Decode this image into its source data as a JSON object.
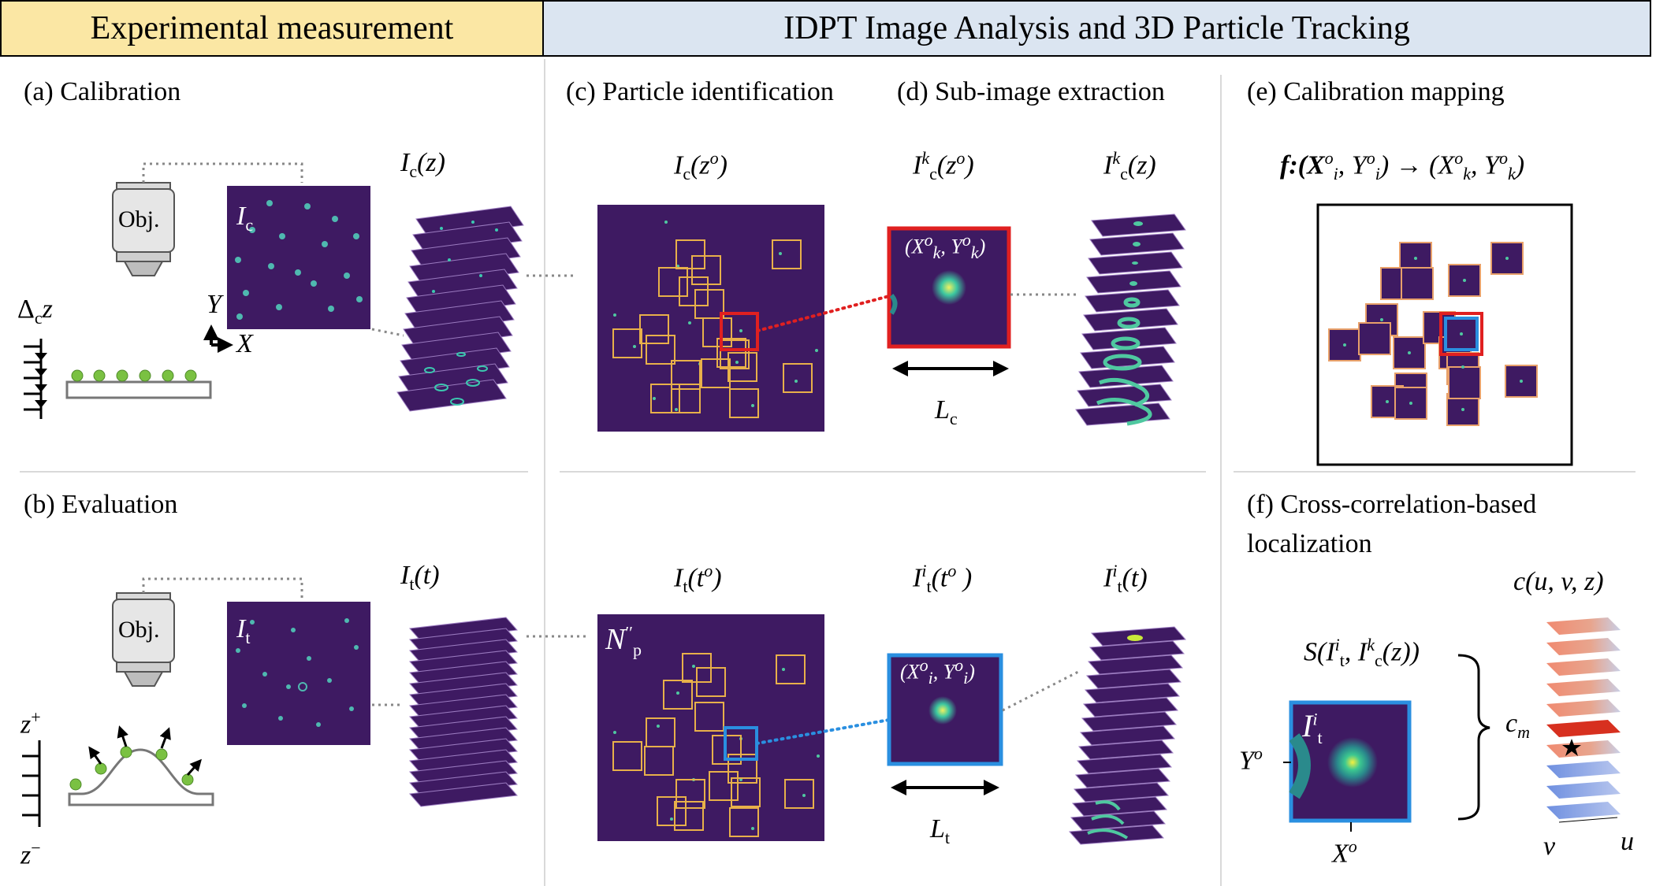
{
  "banners": {
    "experimental": "Experimental measurement",
    "idpt": "IDPT Image Analysis and 3D Particle Tracking"
  },
  "panels": {
    "a": "(a) Calibration",
    "b": "(b) Evaluation",
    "c": "(c) Particle identification",
    "d": "(d) Sub-image extraction",
    "e": "(e) Calibration mapping",
    "f_line1": "(f) Cross-correlation-based",
    "f_line2": "localization"
  },
  "objective_label": "Obj.",
  "symbols": {
    "Ic": "I",
    "c": "c",
    "t": "t",
    "z": "z",
    "zo": "o",
    "Y": "Y",
    "X": "X",
    "delta": "Δ",
    "zplus": "+",
    "zminus": "−",
    "Np": "N",
    "Np_sub": "p",
    "Np_prime": "′′",
    "Lc": "L",
    "Lt": "L",
    "cm": "c",
    "cm_sub": "m",
    "cuvz": "c(u, v, z)",
    "S_expr": "S(I",
    "u": "u",
    "v": "v",
    "Xo": "X",
    "Yo": "Y",
    "o": "o",
    "k": "k",
    "i": "i",
    "f_map": "f:(X",
    "arrow": "→"
  },
  "colors": {
    "banner_exp": "#fbe7a4",
    "banner_idpt": "#dbe5f1",
    "image_bg": "#3e1a62",
    "particle": "#4fc8a0",
    "box_orange": "#e8b04a",
    "highlight_red": "#e02020",
    "highlight_blue": "#2a8fe0",
    "bead_green": "#7ac142"
  }
}
